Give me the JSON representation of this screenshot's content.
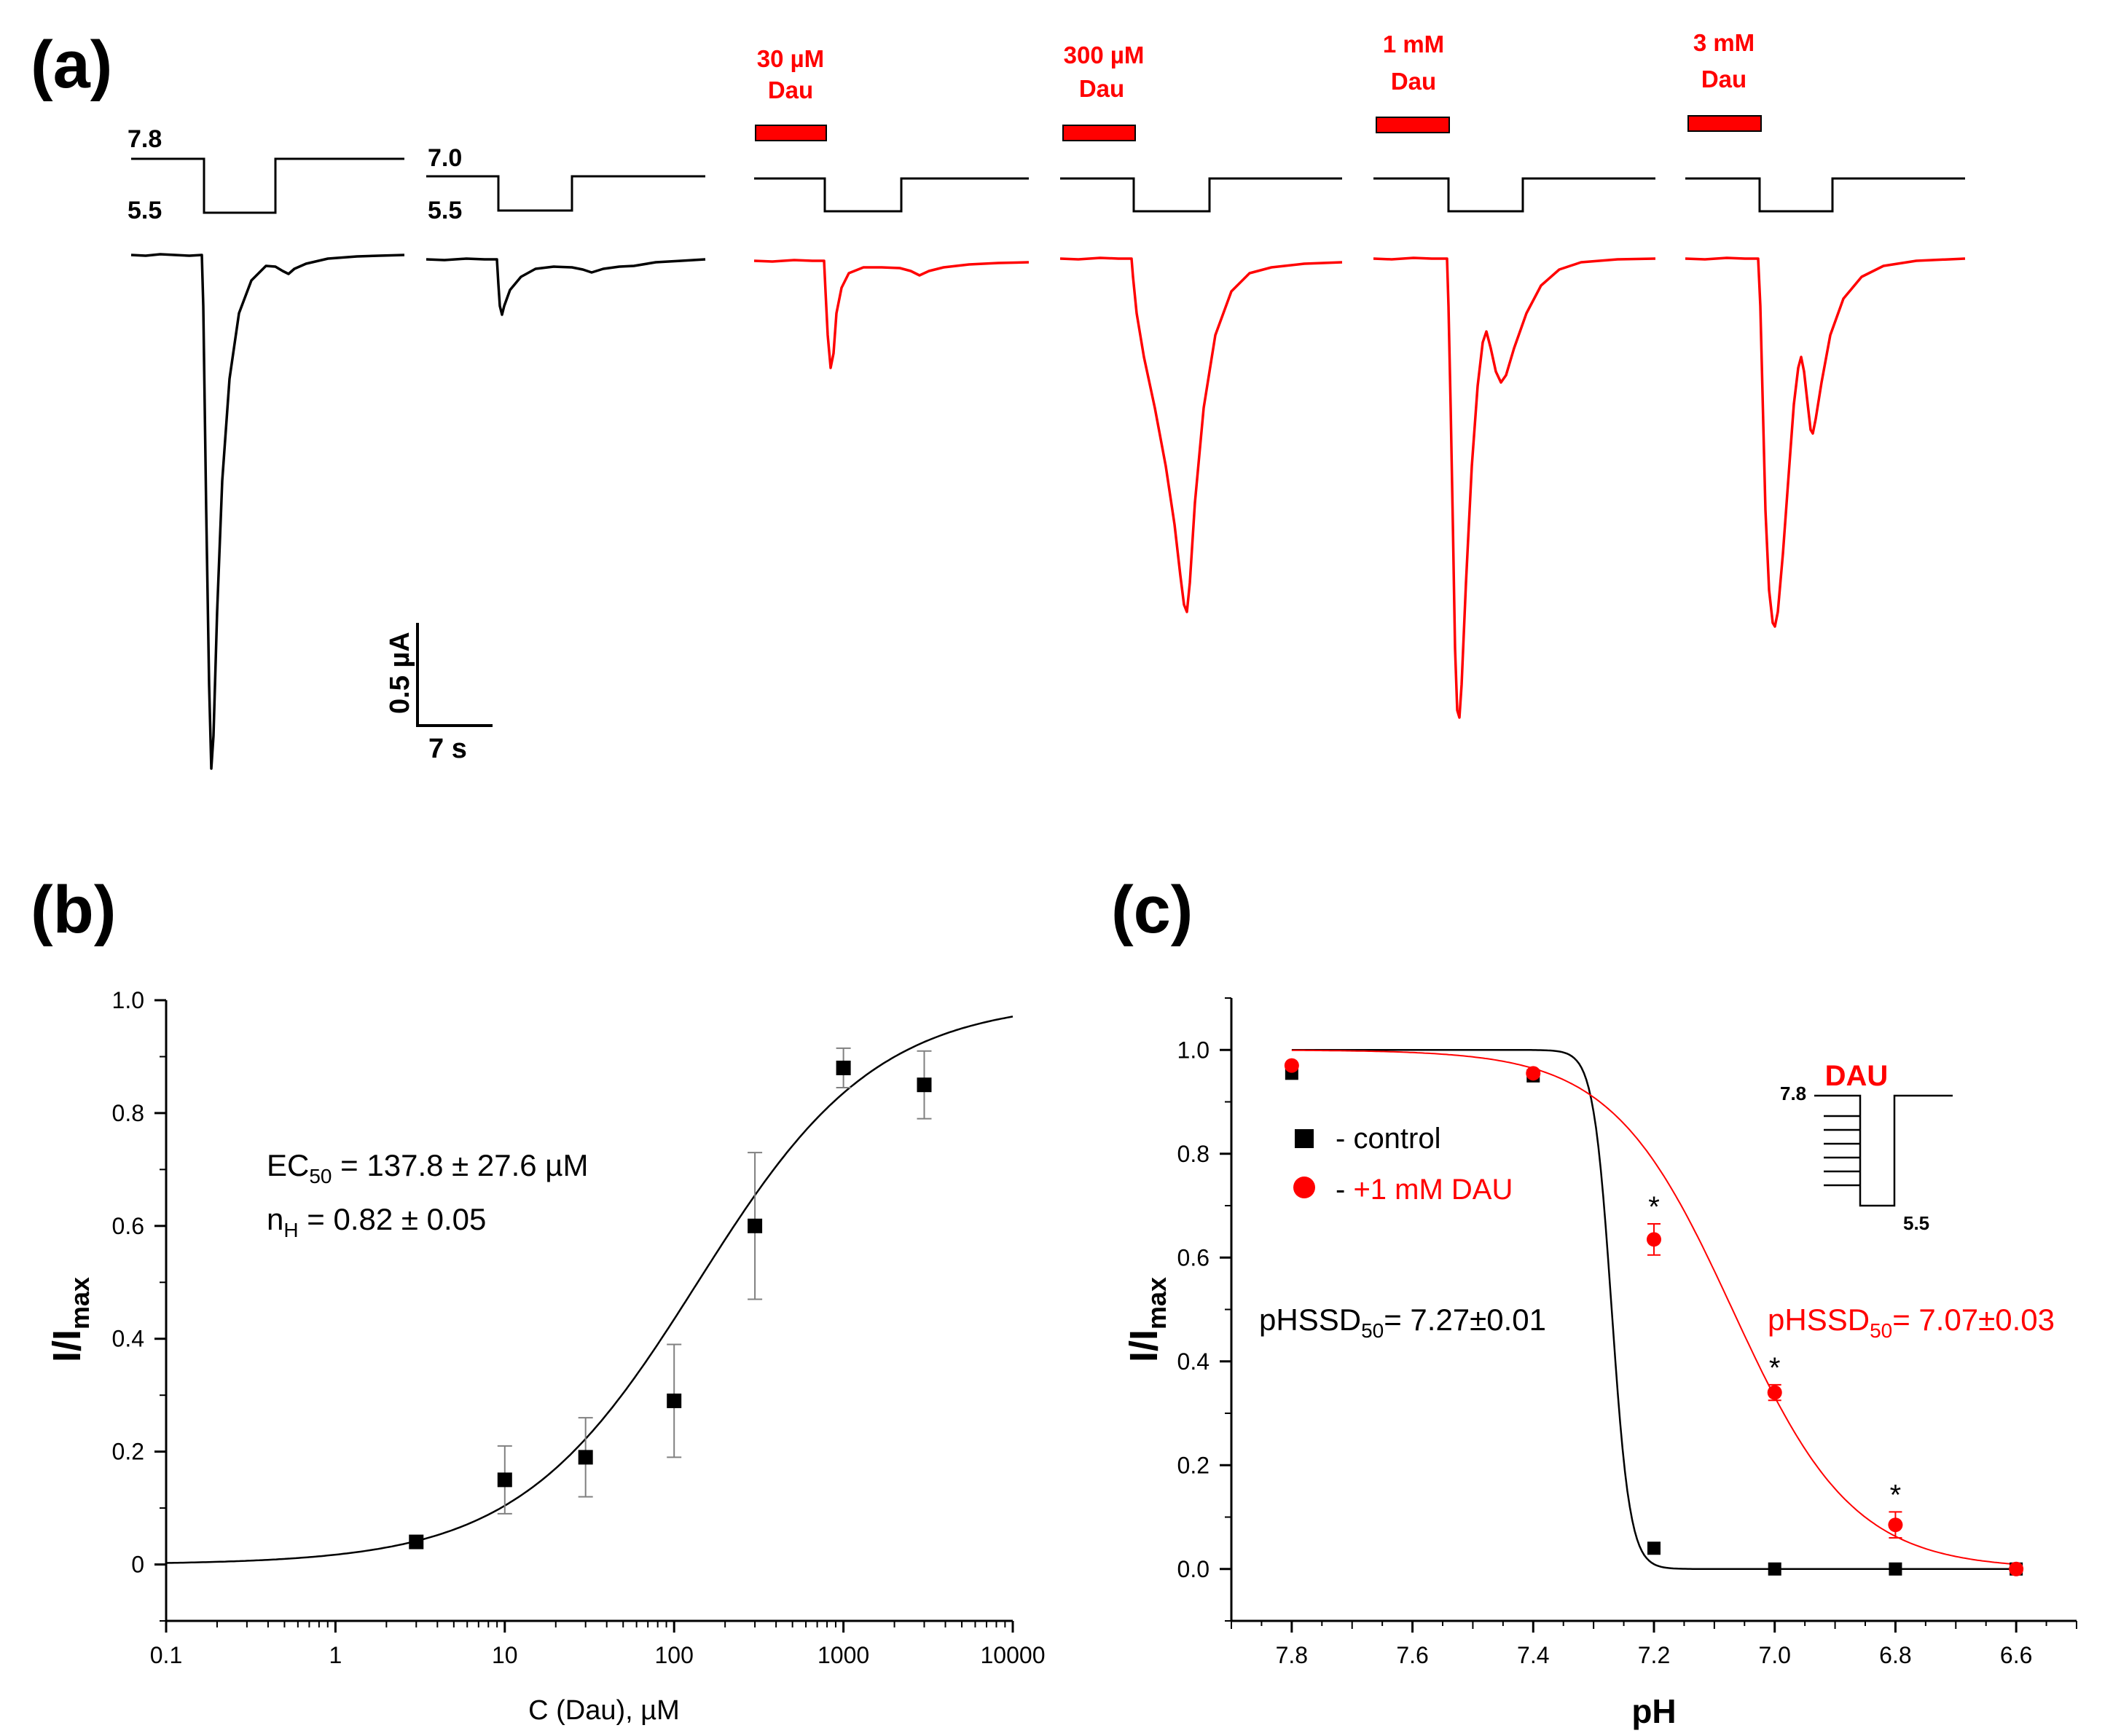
{
  "panels": {
    "a": {
      "label": "(a)"
    },
    "b": {
      "label": "(b)"
    },
    "c": {
      "label": "(c)"
    }
  },
  "colors": {
    "black": "#000000",
    "red": "#ff0000",
    "grey": "#808080"
  },
  "panel_a": {
    "ph_labels": [
      {
        "high": "7.8",
        "low": "5.5"
      },
      {
        "high": "7.0",
        "low": "5.5"
      }
    ],
    "drug_labels": [
      {
        "line1": "30 µM",
        "line2": "Dau"
      },
      {
        "line1": "300 µM",
        "line2": "Dau"
      },
      {
        "line1": "1 mM",
        "line2": "Dau"
      },
      {
        "line1": "3 mM",
        "line2": "Dau"
      }
    ],
    "scale_bar": {
      "current": "0.5 µA",
      "time": "7 s"
    }
  },
  "chart_data": [
    {
      "id": "b",
      "type": "scatter",
      "title": "",
      "xlabel": "C (Dau), µM",
      "ylabel": "I/I",
      "ylabel_sub": "max",
      "xscale": "log",
      "xlim": [
        0.1,
        10000
      ],
      "ylim": [
        -0.1,
        1.0
      ],
      "xticks": [
        0.1,
        1,
        10,
        100,
        1000,
        10000
      ],
      "xtick_labels": [
        "0.1",
        "1",
        "10",
        "100",
        "1000",
        "10000"
      ],
      "yticks": [
        0,
        0.2,
        0.4,
        0.6,
        0.8,
        1.0
      ],
      "ytick_labels": [
        "0",
        "0.2",
        "0.4",
        "0.6",
        "0.8",
        "1.0"
      ],
      "series": [
        {
          "name": "Dau",
          "color": "#000000",
          "marker": "square",
          "x": [
            3,
            10,
            30,
            100,
            300,
            1000,
            3000
          ],
          "y": [
            0.04,
            0.15,
            0.19,
            0.29,
            0.6,
            0.88,
            0.85
          ],
          "err": [
            0.0,
            0.06,
            0.07,
            0.1,
            0.13,
            0.035,
            0.06
          ]
        }
      ],
      "fit": {
        "type": "hill",
        "ec50": 137.8,
        "nH": 0.82,
        "color": "#000000"
      },
      "annotations": {
        "ec50_main": "EC",
        "ec50_sub": "50",
        "ec50_value": " = 137.8 ± 27.6 µM",
        "nh_main": "n",
        "nh_sub": "H",
        "nh_value": " = 0.82 ± 0.05"
      }
    },
    {
      "id": "c",
      "type": "scatter",
      "title": "",
      "xlabel": "pH",
      "ylabel": "I/I",
      "ylabel_sub": "max",
      "xlim": [
        7.9,
        6.5
      ],
      "ylim": [
        -0.1,
        1.1
      ],
      "xticks": [
        7.8,
        7.6,
        7.4,
        7.2,
        7.0,
        6.8,
        6.6
      ],
      "xtick_labels": [
        "7.8",
        "7.6",
        "7.4",
        "7.2",
        "7.0",
        "6.8",
        "6.6"
      ],
      "yticks": [
        0,
        0.2,
        0.4,
        0.6,
        0.8,
        1.0
      ],
      "ytick_labels": [
        "0.0",
        "0.2",
        "0.4",
        "0.6",
        "0.8",
        "1.0"
      ],
      "series": [
        {
          "name": "control",
          "color": "#000000",
          "marker": "square",
          "x": [
            7.8,
            7.4,
            7.2,
            7.0,
            6.8,
            6.6
          ],
          "y": [
            0.955,
            0.95,
            0.04,
            0.0,
            0.0,
            0.0
          ],
          "fit": {
            "ph50": 7.27,
            "slope": 0.015
          }
        },
        {
          "name": "+1 mM DAU",
          "color": "#ff0000",
          "marker": "circle",
          "x": [
            7.8,
            7.4,
            7.2,
            7.0,
            6.8,
            6.6
          ],
          "y": [
            0.97,
            0.955,
            0.635,
            0.34,
            0.085,
            0.0
          ],
          "err": [
            0.0,
            0.0,
            0.03,
            0.015,
            0.025,
            0.0
          ],
          "significant": [
            false,
            false,
            true,
            true,
            true,
            false
          ],
          "fit": {
            "ph50": 7.07,
            "slope": 0.1
          }
        }
      ],
      "legend": [
        {
          "symbol": "square",
          "color": "#000000",
          "prefix": "- ",
          "text": "control"
        },
        {
          "symbol": "circle",
          "color": "#ff0000",
          "prefix": "- ",
          "text": "+1 mM DAU"
        }
      ],
      "annotations": {
        "control_main": "pHSSD",
        "control_sub": "50",
        "control_value": "= 7.27±0.01",
        "dau_main": "pHSSD",
        "dau_sub": "50",
        "dau_value": "= 7.07±0.03",
        "star": "*"
      },
      "protocol_inset": {
        "drug": "DAU",
        "high": "7.8",
        "low": "5.5"
      }
    }
  ]
}
